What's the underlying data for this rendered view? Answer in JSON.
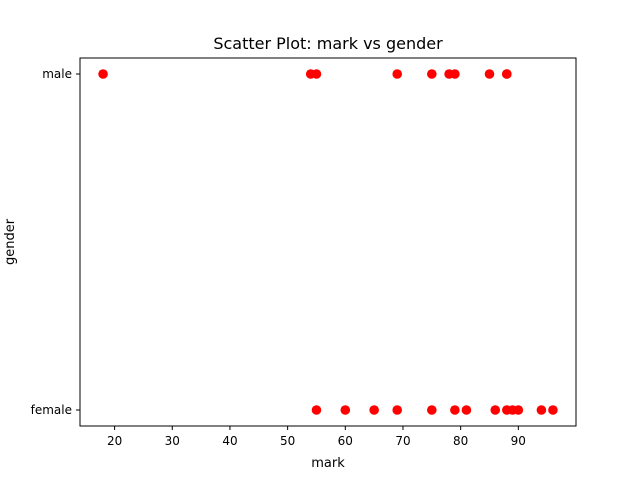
{
  "chart_data": {
    "type": "scatter",
    "title": "Scatter Plot: mark vs gender",
    "xlabel": "mark",
    "ylabel": "gender",
    "xlim": [
      14,
      100
    ],
    "categories_y": [
      "female",
      "male"
    ],
    "x_ticks": [
      20,
      30,
      40,
      50,
      60,
      70,
      80,
      90
    ],
    "grid": false,
    "legend": "none",
    "marker_color": "#ff0000",
    "points": [
      {
        "x": 18,
        "y": "male"
      },
      {
        "x": 54,
        "y": "male"
      },
      {
        "x": 55,
        "y": "male"
      },
      {
        "x": 69,
        "y": "male"
      },
      {
        "x": 75,
        "y": "male"
      },
      {
        "x": 78,
        "y": "male"
      },
      {
        "x": 79,
        "y": "male"
      },
      {
        "x": 85,
        "y": "male"
      },
      {
        "x": 88,
        "y": "male"
      },
      {
        "x": 88,
        "y": "male"
      },
      {
        "x": 55,
        "y": "female"
      },
      {
        "x": 60,
        "y": "female"
      },
      {
        "x": 65,
        "y": "female"
      },
      {
        "x": 69,
        "y": "female"
      },
      {
        "x": 75,
        "y": "female"
      },
      {
        "x": 79,
        "y": "female"
      },
      {
        "x": 81,
        "y": "female"
      },
      {
        "x": 86,
        "y": "female"
      },
      {
        "x": 88,
        "y": "female"
      },
      {
        "x": 89,
        "y": "female"
      },
      {
        "x": 90,
        "y": "female"
      },
      {
        "x": 94,
        "y": "female"
      },
      {
        "x": 96,
        "y": "female"
      }
    ]
  }
}
